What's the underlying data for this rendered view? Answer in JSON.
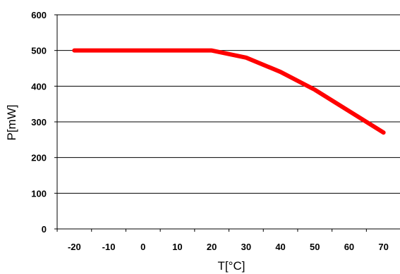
{
  "chart_data": {
    "type": "line",
    "title": "",
    "xlabel": "T[°C]",
    "ylabel": "P[mW]",
    "xlim": [
      -25,
      75
    ],
    "ylim": [
      0,
      600
    ],
    "x_ticks": [
      -20,
      -10,
      0,
      10,
      20,
      30,
      40,
      50,
      60,
      70
    ],
    "y_ticks": [
      0,
      100,
      200,
      300,
      400,
      500,
      600
    ],
    "grid": "horizontal",
    "legend": "none",
    "series": [
      {
        "color": "#ff0000",
        "x": [
          -20,
          -10,
          0,
          10,
          20,
          30,
          40,
          50,
          60,
          70
        ],
        "y": [
          500,
          500,
          500,
          500,
          500,
          480,
          440,
          390,
          330,
          270
        ]
      }
    ]
  }
}
